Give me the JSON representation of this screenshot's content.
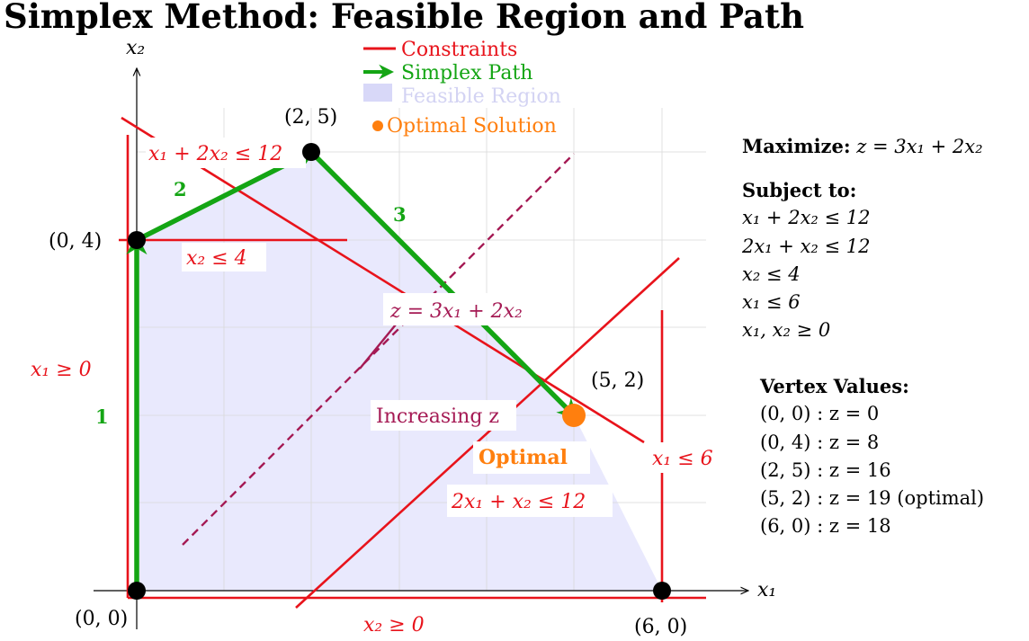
{
  "title": "Simplex Method: Feasible Region and Path",
  "colors": {
    "constraint": "#e8131b",
    "path": "#14a514",
    "feasible": "#e9e9fd",
    "optimal": "#ff7f0e",
    "objective": "#a51a54",
    "vertex": "#000000"
  },
  "axes": {
    "x_label": "x₁",
    "y_label": "x₂",
    "x_range": [
      0,
      6
    ],
    "y_range": [
      0,
      5
    ],
    "grid": true
  },
  "legend": {
    "items": [
      {
        "label": "Constraints",
        "marker": "line",
        "color": "#e8131b"
      },
      {
        "label": "Simplex Path",
        "marker": "arrow",
        "color": "#14a514"
      },
      {
        "label": "Feasible Region",
        "marker": "swatch",
        "color": "#d8d8f8"
      },
      {
        "label": "Optimal Solution",
        "marker": "dot",
        "color": "#ff7f0e"
      }
    ]
  },
  "vertices": [
    {
      "label": "(0, 0)",
      "x": 0,
      "y": 0
    },
    {
      "label": "(0, 4)",
      "x": 0,
      "y": 4
    },
    {
      "label": "(2, 5)",
      "x": 2,
      "y": 5
    },
    {
      "label": "(5, 2)",
      "x": 5,
      "y": 2,
      "optimal": true
    },
    {
      "label": "(6, 0)",
      "x": 6,
      "y": 0
    }
  ],
  "simplex_path": [
    {
      "step": "1",
      "from": [
        0,
        0
      ],
      "to": [
        0,
        4
      ]
    },
    {
      "step": "2",
      "from": [
        0,
        4
      ],
      "to": [
        2,
        5
      ]
    },
    {
      "step": "3",
      "from": [
        2,
        5
      ],
      "to": [
        5,
        2
      ]
    }
  ],
  "constraint_labels": {
    "c1": "x₁ + 2x₂ ≤ 12",
    "c2": "2x₁ + x₂ ≤ 12",
    "c3": "x₂ ≤ 4",
    "c4": "x₁ ≤ 6",
    "c5": "x₁ ≥ 0",
    "c6": "x₂ ≥ 0"
  },
  "annotations": {
    "objective_line": "z = 3x₁ + 2x₂",
    "increasing": "Increasing z",
    "optimal": "Optimal"
  },
  "objective": {
    "label": "Maximize:",
    "expr": "z = 3x₁ + 2x₂"
  },
  "constraints_panel": {
    "heading": "Subject to:",
    "items": [
      "x₁ + 2x₂ ≤ 12",
      "2x₁ + x₂ ≤ 12",
      "x₂ ≤ 4",
      "x₁ ≤ 6",
      "x₁, x₂ ≥ 0"
    ]
  },
  "vertex_values": {
    "heading": "Vertex Values:",
    "items": [
      "(0, 0) : z = 0",
      "(0, 4) : z = 8",
      "(2, 5) : z = 16",
      "(5, 2) : z = 19 (optimal)",
      "(6, 0) : z = 18"
    ]
  }
}
